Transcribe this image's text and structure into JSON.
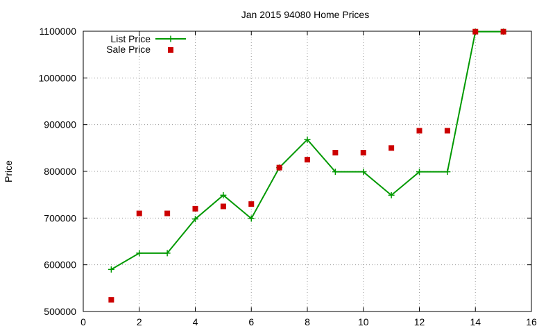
{
  "chart_data": {
    "type": "line",
    "title": "Jan 2015 94080 Home Prices",
    "xlabel": "",
    "ylabel": "Price",
    "xlim": [
      0,
      16
    ],
    "ylim": [
      500000,
      1100000
    ],
    "xticks": [
      0,
      2,
      4,
      6,
      8,
      10,
      12,
      14,
      16
    ],
    "yticks": [
      500000,
      600000,
      700000,
      800000,
      900000,
      1000000,
      1100000
    ],
    "xtick_labels": [
      "0",
      "2",
      "4",
      "6",
      "8",
      "10",
      "12",
      "14",
      "16"
    ],
    "ytick_labels": [
      "500000",
      "600000",
      "700000",
      "800000",
      "900000",
      "1000000",
      "1100000"
    ],
    "grid": true,
    "legend_position": "top-left",
    "series": [
      {
        "name": "List Price",
        "style": "line-with-plus-markers",
        "color": "#009900",
        "x": [
          1,
          2,
          3,
          4,
          5,
          6,
          7,
          8,
          9,
          10,
          11,
          12,
          13,
          14,
          15
        ],
        "y": [
          590000,
          625000,
          625000,
          698000,
          749000,
          699000,
          808000,
          868000,
          799000,
          799000,
          749000,
          799000,
          799000,
          1099000,
          1099000
        ]
      },
      {
        "name": "Sale Price",
        "style": "square-markers",
        "color": "#cc0000",
        "x": [
          1,
          2,
          3,
          4,
          5,
          6,
          7,
          8,
          9,
          10,
          11,
          12,
          13,
          14,
          15
        ],
        "y": [
          525000,
          710000,
          710000,
          720000,
          725000,
          730000,
          808000,
          825000,
          840000,
          840000,
          850000,
          887000,
          887000,
          1099000,
          1099000
        ]
      }
    ]
  }
}
